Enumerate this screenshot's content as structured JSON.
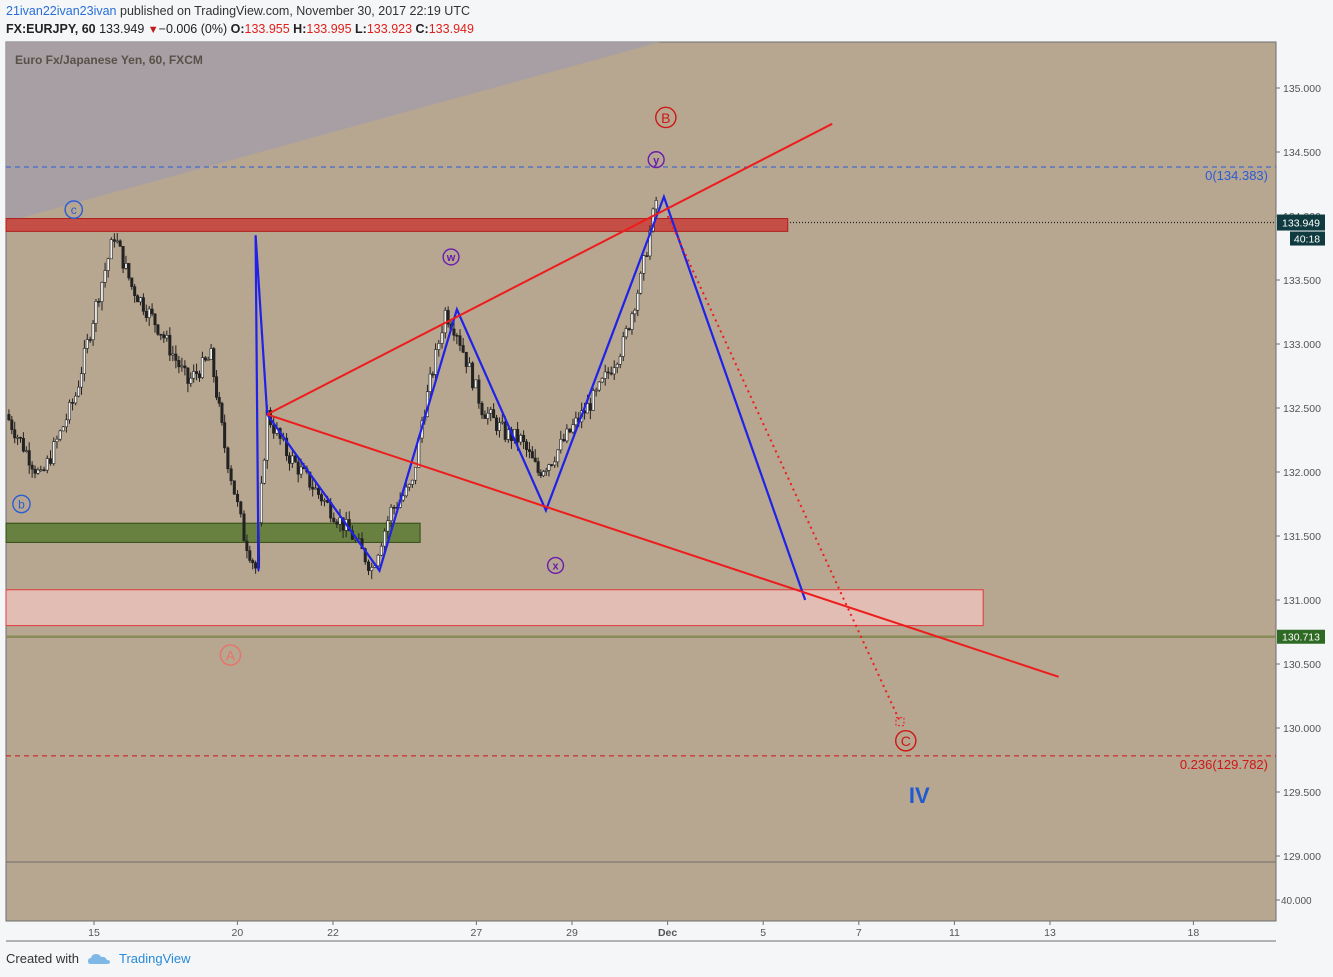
{
  "header": {
    "user": "21ivan22ivan23ivan",
    "published_text": "published on TradingView.com, November 30, 2017 22:19 UTC",
    "symbol": "FX:EURJPY, 60",
    "last": "133.949",
    "change": "−0.006 (0%)",
    "o_label": "O:",
    "o": "133.955",
    "h_label": "H:",
    "h": "133.995",
    "l_label": "L:",
    "l": "133.923",
    "c_label": "C:",
    "c": "133.949"
  },
  "footer": {
    "created": "Created with",
    "brand": "TradingView"
  },
  "colors": {
    "background": "#b7a690",
    "wave_blue": "#1f22e8",
    "trend_red": "#ee1c1c",
    "label_purple": "#6a1bb0",
    "label_red": "#d01515",
    "level_blue": "#2b5cd6"
  },
  "chart_data": {
    "type": "candlestick",
    "title": "Euro Fx/Japanese Yen, 60, FXCM",
    "x_ticks": [
      "15",
      "20",
      "22",
      "27",
      "29",
      "Dec",
      "5",
      "7",
      "11",
      "13",
      "18"
    ],
    "y_ticks": [
      "135.000",
      "134.500",
      "134.000",
      "133.500",
      "133.000",
      "132.500",
      "132.000",
      "131.500",
      "131.000",
      "130.500",
      "130.000",
      "129.500",
      "129.000"
    ],
    "ylim": [
      128.95,
      135.35
    ],
    "x_axis": [
      "Nov 11",
      "Dec 19"
    ],
    "price_labels": {
      "last": "133.949",
      "countdown": "40:18",
      "level": "130.713"
    },
    "horizontal_levels": [
      {
        "label": "0(134.383)",
        "value": 134.383,
        "style": "dashed-blue"
      },
      {
        "label": "0.236(129.782)",
        "value": 129.782,
        "style": "dashed-red"
      },
      {
        "value": 133.949,
        "style": "dotted-black"
      },
      {
        "value": 130.713,
        "style": "solid-olive"
      }
    ],
    "wave_labels": [
      "c",
      "b",
      "A",
      "w",
      "x",
      "y",
      "B",
      "C",
      "IV"
    ],
    "candle_segments": [
      [
        0.0,
        132.45
      ],
      [
        1.8,
        131.95
      ],
      [
        2.8,
        132.3
      ],
      [
        3.6,
        132.6
      ],
      [
        4.8,
        133.4
      ],
      [
        5.6,
        133.85
      ],
      [
        6.5,
        133.45
      ],
      [
        8.0,
        133.1
      ],
      [
        9.4,
        132.7
      ],
      [
        10.6,
        132.9
      ],
      [
        11.3,
        132.2
      ],
      [
        12.3,
        131.5
      ],
      [
        12.9,
        131.25
      ],
      [
        13.5,
        132.45
      ],
      [
        14.5,
        132.15
      ],
      [
        16.3,
        131.8
      ],
      [
        17.9,
        131.5
      ],
      [
        18.9,
        131.25
      ],
      [
        19.9,
        131.7
      ],
      [
        21.0,
        131.9
      ],
      [
        21.5,
        132.4
      ],
      [
        22.2,
        132.9
      ],
      [
        22.7,
        133.25
      ],
      [
        23.3,
        133.1
      ],
      [
        24.6,
        132.5
      ],
      [
        25.8,
        132.3
      ],
      [
        26.6,
        132.25
      ],
      [
        27.5,
        132.0
      ],
      [
        28.2,
        132.1
      ],
      [
        29.3,
        132.35
      ],
      [
        30.5,
        132.6
      ],
      [
        31.9,
        133.0
      ],
      [
        32.8,
        133.5
      ],
      [
        33.6,
        134.12
      ]
    ],
    "blue_wave": [
      [
        13.05,
        131.23
      ],
      [
        12.9,
        133.85
      ],
      [
        13.5,
        132.45
      ],
      [
        19.3,
        131.23
      ],
      [
        23.3,
        133.27
      ],
      [
        27.9,
        131.7
      ],
      [
        34.0,
        134.15
      ],
      [
        41.3,
        131.0
      ]
    ],
    "red_channel_top": [
      [
        13.5,
        132.45
      ],
      [
        42.7,
        134.72
      ]
    ],
    "red_channel_bottom": [
      [
        13.5,
        132.45
      ],
      [
        54.4,
        130.4
      ]
    ],
    "red_projection": [
      [
        34.2,
        134.0
      ],
      [
        46.2,
        130.05
      ]
    ],
    "zones": [
      {
        "name": "resistance",
        "x": [
          0,
          40.4
        ],
        "y": [
          133.88,
          133.98
        ]
      },
      {
        "name": "support",
        "x": [
          0,
          21.4
        ],
        "y": [
          131.45,
          131.6
        ]
      },
      {
        "name": "target",
        "x": [
          0,
          50.5
        ],
        "y": [
          130.8,
          131.08
        ]
      }
    ]
  }
}
